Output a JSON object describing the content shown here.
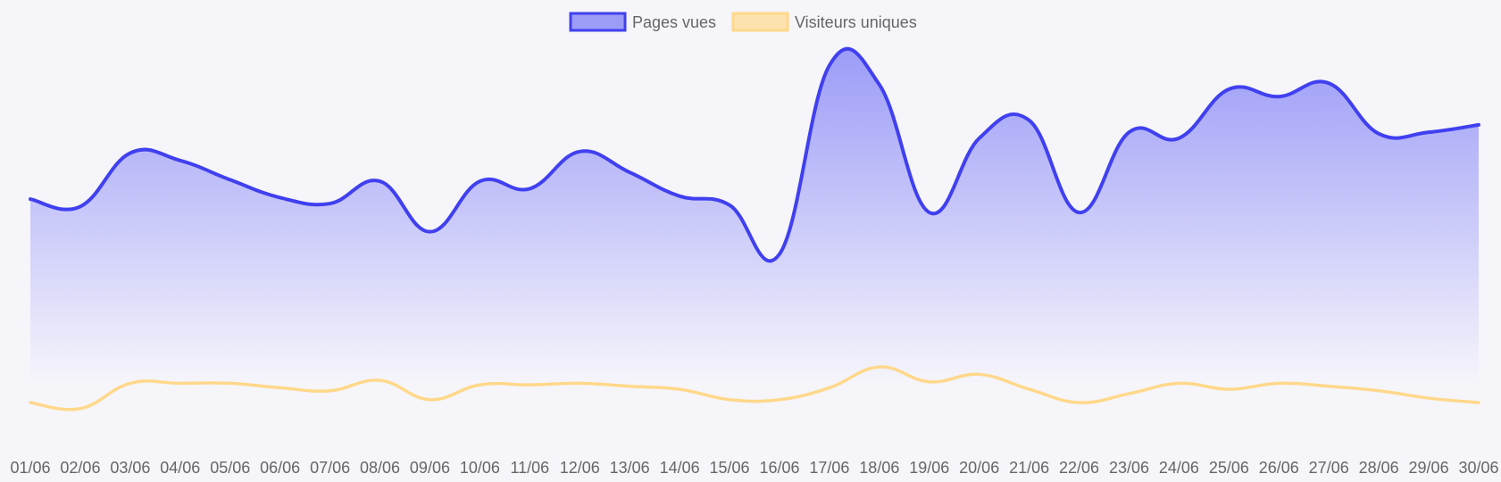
{
  "chart_data": {
    "type": "area",
    "title": "",
    "xlabel": "",
    "ylabel": "",
    "ylim": [
      0,
      1400
    ],
    "grid": false,
    "legend_position": "top-center",
    "categories": [
      "01/06",
      "02/06",
      "03/06",
      "04/06",
      "05/06",
      "06/06",
      "07/06",
      "08/06",
      "09/06",
      "10/06",
      "11/06",
      "12/06",
      "13/06",
      "14/06",
      "15/06",
      "16/06",
      "17/06",
      "18/06",
      "19/06",
      "20/06",
      "21/06",
      "22/06",
      "23/06",
      "24/06",
      "25/06",
      "26/06",
      "27/06",
      "28/06",
      "29/06",
      "30/06"
    ],
    "series": [
      {
        "name": "Pages vues",
        "values": [
          820,
          795,
          975,
          950,
          885,
          825,
          805,
          880,
          710,
          880,
          855,
          980,
          910,
          830,
          800,
          635,
          1270,
          1205,
          775,
          1025,
          1085,
          775,
          1045,
          1025,
          1190,
          1165,
          1210,
          1040,
          1045,
          1070
        ],
        "color": "#4040f0",
        "fill_top": "#9c9cf8",
        "fill_bottom": "#f6f5fb"
      },
      {
        "name": "Visiteurs uniques",
        "values": [
          135,
          115,
          200,
          200,
          200,
          185,
          175,
          210,
          145,
          195,
          195,
          200,
          190,
          180,
          145,
          145,
          185,
          255,
          205,
          230,
          180,
          135,
          165,
          200,
          180,
          200,
          190,
          175,
          150,
          135
        ],
        "color": "#ffd88a"
      }
    ]
  }
}
